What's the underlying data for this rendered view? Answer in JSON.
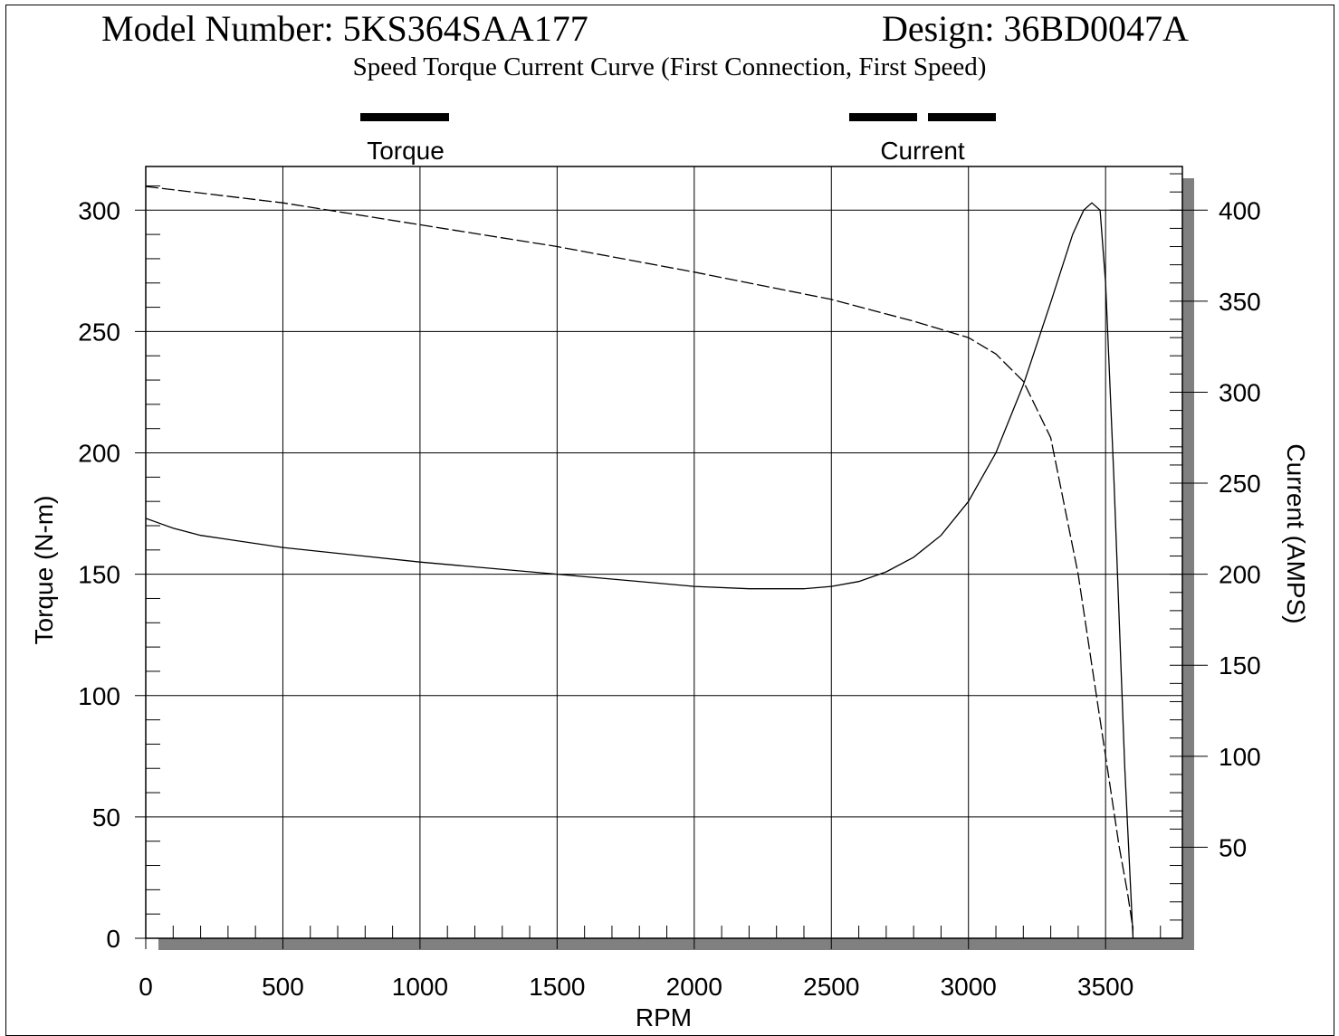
{
  "header": {
    "model": "Model Number: 5KS364SAA177",
    "design": "Design: 36BD0047A",
    "subtitle": "Speed Torque Current Curve (First Connection, First Speed)"
  },
  "colors": {
    "line": "#000000",
    "grid": "#000000",
    "shadow": "#808080",
    "background": "#ffffff"
  },
  "chart_data": {
    "type": "line",
    "title": "",
    "xlabel": "RPM",
    "ylabel": "Torque (N-m)",
    "y2label": "Current (AMPS)",
    "xlim": [
      0,
      3780
    ],
    "ylim": [
      0,
      318
    ],
    "y2lim": [
      0,
      424
    ],
    "xticks": [
      0,
      500,
      1000,
      1500,
      2000,
      2500,
      3000,
      3500
    ],
    "yticks": [
      0,
      50,
      100,
      150,
      200,
      250,
      300
    ],
    "y2ticks": [
      50,
      100,
      150,
      200,
      250,
      300,
      350,
      400
    ],
    "grid": true,
    "legend": "top",
    "series": [
      {
        "name": "Torque",
        "axis": "left",
        "style": "solid",
        "x": [
          0,
          50,
          100,
          200,
          500,
          1000,
          1500,
          2000,
          2200,
          2400,
          2500,
          2600,
          2700,
          2800,
          2900,
          3000,
          3100,
          3200,
          3300,
          3380,
          3420,
          3450,
          3480,
          3500,
          3530,
          3570,
          3600
        ],
        "y": [
          173,
          171,
          169,
          166,
          161,
          155,
          150,
          145,
          144,
          144,
          145,
          147,
          151,
          157,
          166,
          180,
          200,
          228,
          262,
          290,
          300,
          303,
          300,
          270,
          190,
          70,
          0
        ]
      },
      {
        "name": "Current",
        "axis": "right",
        "style": "dashed",
        "x": [
          0,
          500,
          1000,
          1500,
          2000,
          2500,
          2800,
          3000,
          3100,
          3200,
          3300,
          3400,
          3450,
          3500,
          3550,
          3580,
          3600
        ],
        "y": [
          413,
          404,
          392,
          380,
          366,
          351,
          339,
          330,
          321,
          306,
          275,
          200,
          150,
          100,
          50,
          25,
          5
        ]
      }
    ]
  }
}
